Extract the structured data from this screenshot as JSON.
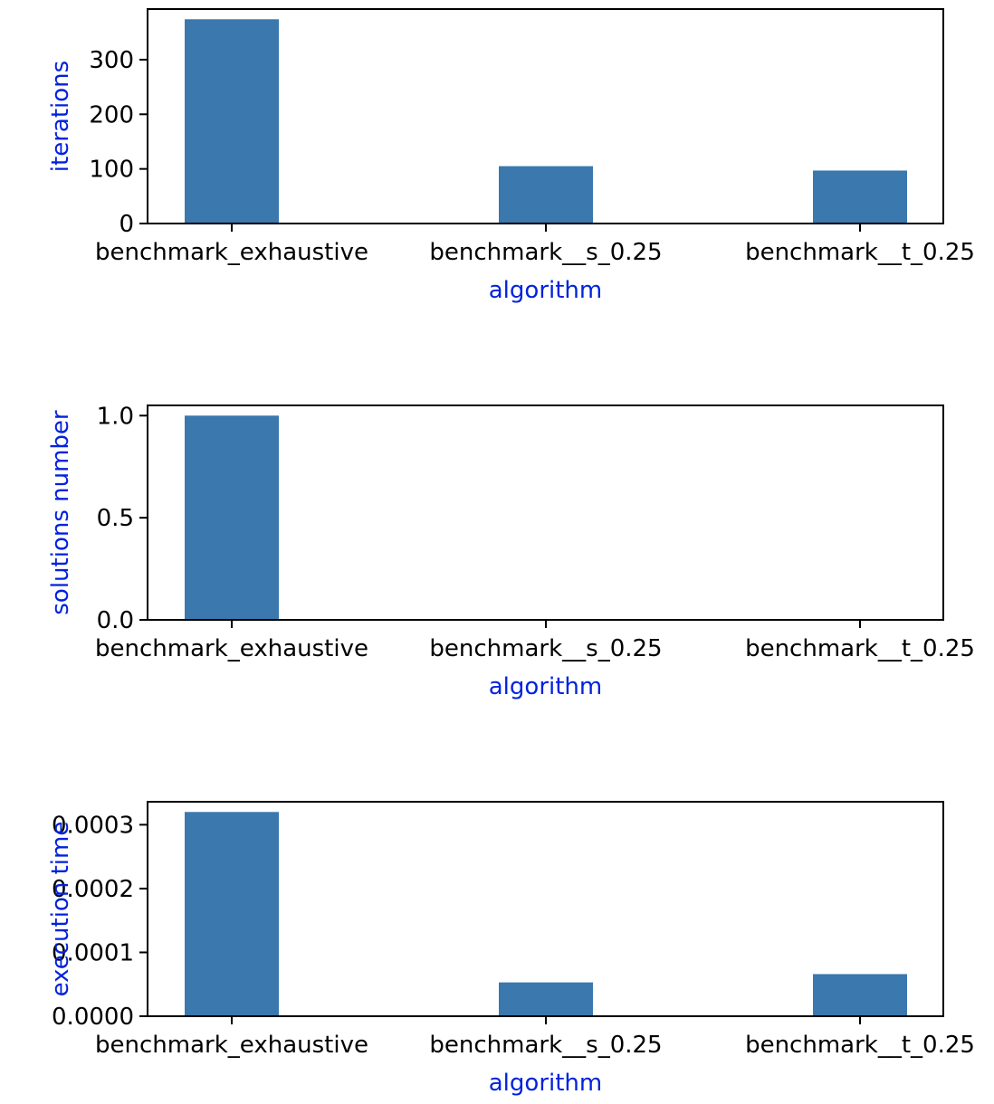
{
  "chart_data": [
    {
      "type": "bar",
      "categories": [
        "benchmark_exhaustive",
        "benchmark__s_0.25",
        "benchmark__t_0.25"
      ],
      "values": [
        374,
        105,
        97
      ],
      "xlabel": "algorithm",
      "ylabel": "iterations",
      "ylim": [
        0,
        392.7
      ],
      "yticks": [
        0,
        100,
        200,
        300
      ],
      "ytick_labels": [
        "0",
        "100",
        "200",
        "300"
      ],
      "grid": false,
      "label_color": "#0022dd",
      "bar_color": "#3a78ae"
    },
    {
      "type": "bar",
      "categories": [
        "benchmark_exhaustive",
        "benchmark__s_0.25",
        "benchmark__t_0.25"
      ],
      "values": [
        1.0,
        0.0,
        0.0
      ],
      "xlabel": "algorithm",
      "ylabel": "solutions number",
      "ylim": [
        0,
        1.05
      ],
      "yticks": [
        0,
        0.5,
        1.0
      ],
      "ytick_labels": [
        "0.0",
        "0.5",
        "1.0"
      ],
      "grid": false,
      "label_color": "#0022dd",
      "bar_color": "#3a78ae"
    },
    {
      "type": "bar",
      "categories": [
        "benchmark_exhaustive",
        "benchmark__s_0.25",
        "benchmark__t_0.25"
      ],
      "values": [
        0.00032,
        5.3e-05,
        6.6e-05
      ],
      "xlabel": "algorithm",
      "ylabel": "execution time",
      "ylim": [
        0,
        0.000336
      ],
      "yticks": [
        0,
        0.0001,
        0.0002,
        0.0003
      ],
      "ytick_labels": [
        "0.0000",
        "0.0001",
        "0.0002",
        "0.0003"
      ],
      "grid": false,
      "label_color": "#0022dd",
      "bar_color": "#3a78ae"
    }
  ]
}
